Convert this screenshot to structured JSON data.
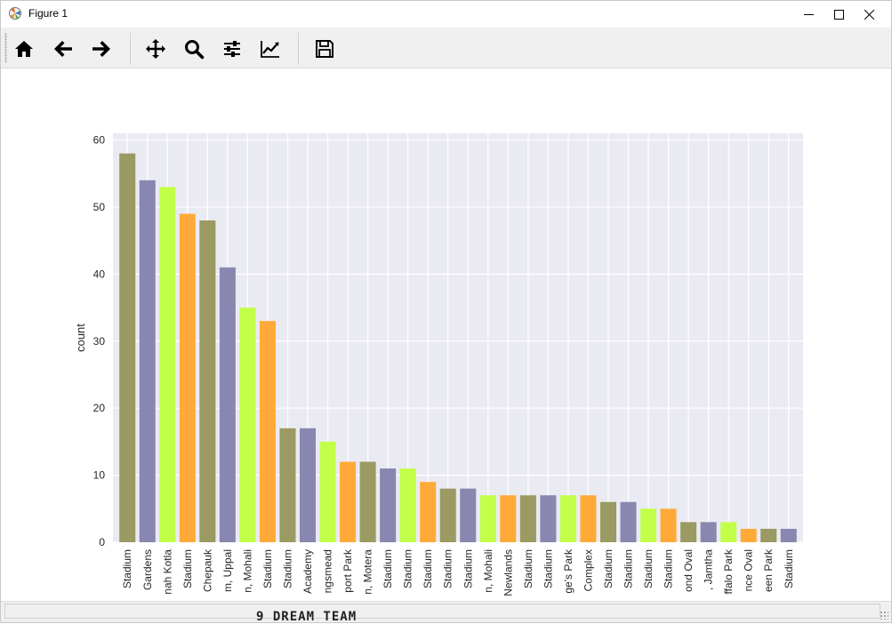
{
  "window": {
    "title": "Figure 1"
  },
  "toolbar": {
    "buttons": [
      {
        "name": "home-button",
        "icon": "home-icon"
      },
      {
        "name": "back-button",
        "icon": "arrow-left-icon"
      },
      {
        "name": "forward-button",
        "icon": "arrow-right-icon"
      },
      {
        "name": "pan-button",
        "icon": "move-icon"
      },
      {
        "name": "zoom-button",
        "icon": "magnifier-icon"
      },
      {
        "name": "subplots-button",
        "icon": "sliders-icon"
      },
      {
        "name": "axes-edit-button",
        "icon": "line-chart-icon"
      },
      {
        "name": "save-button",
        "icon": "floppy-disk-icon"
      }
    ]
  },
  "background_text": "9 DREAM TEAM",
  "chart_data": {
    "type": "bar",
    "title": "",
    "xlabel": "",
    "ylabel": "count",
    "ylim": [
      0,
      61
    ],
    "yticks": [
      0,
      10,
      20,
      30,
      40,
      50,
      60
    ],
    "grid": true,
    "palette": [
      "#9a9a62",
      "#8887b0",
      "#c2ff48",
      "#ffaa38"
    ],
    "categories": [
      "Stadium",
      "Gardens",
      "nah Kotla",
      "Stadium",
      "Chepauk",
      "m, Uppal",
      "n, Mohali",
      "Stadium",
      "Stadium",
      "Academy",
      "ngsmead",
      "port Park",
      "n, Motera",
      "Stadium",
      "Stadium",
      "Stadium",
      "Stadium",
      "Stadium",
      "n, Mohali",
      "Newlands",
      "Stadium",
      "Stadium",
      "ge's Park",
      "Complex",
      "Stadium",
      "Stadium",
      "Stadium",
      "Stadium",
      "ond Oval",
      ", Jamtha",
      "ffalo Park",
      "nce Oval",
      "een Park",
      "Stadium"
    ],
    "values": [
      58,
      54,
      53,
      49,
      48,
      41,
      35,
      33,
      17,
      17,
      15,
      12,
      12,
      11,
      11,
      9,
      8,
      8,
      7,
      7,
      7,
      7,
      7,
      7,
      6,
      6,
      5,
      5,
      3,
      3,
      3,
      2,
      2,
      2
    ]
  }
}
